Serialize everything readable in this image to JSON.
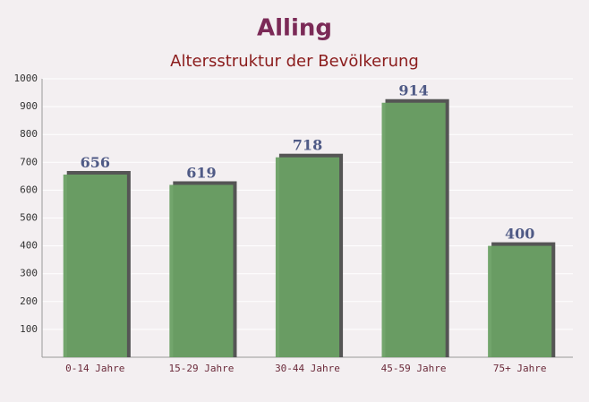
{
  "chart_data": {
    "type": "bar",
    "title": "Alling",
    "subtitle": "Altersstruktur der Bevölkerung",
    "categories": [
      "0-14 Jahre",
      "15-29 Jahre",
      "30-44 Jahre",
      "45-59 Jahre",
      "75+ Jahre"
    ],
    "values": [
      656,
      619,
      718,
      914,
      400
    ],
    "color": "#6aa064",
    "ylim": [
      0,
      1000
    ],
    "yticks": [
      100,
      200,
      300,
      400,
      500,
      600,
      700,
      800,
      900,
      1000
    ],
    "grid": true
  }
}
